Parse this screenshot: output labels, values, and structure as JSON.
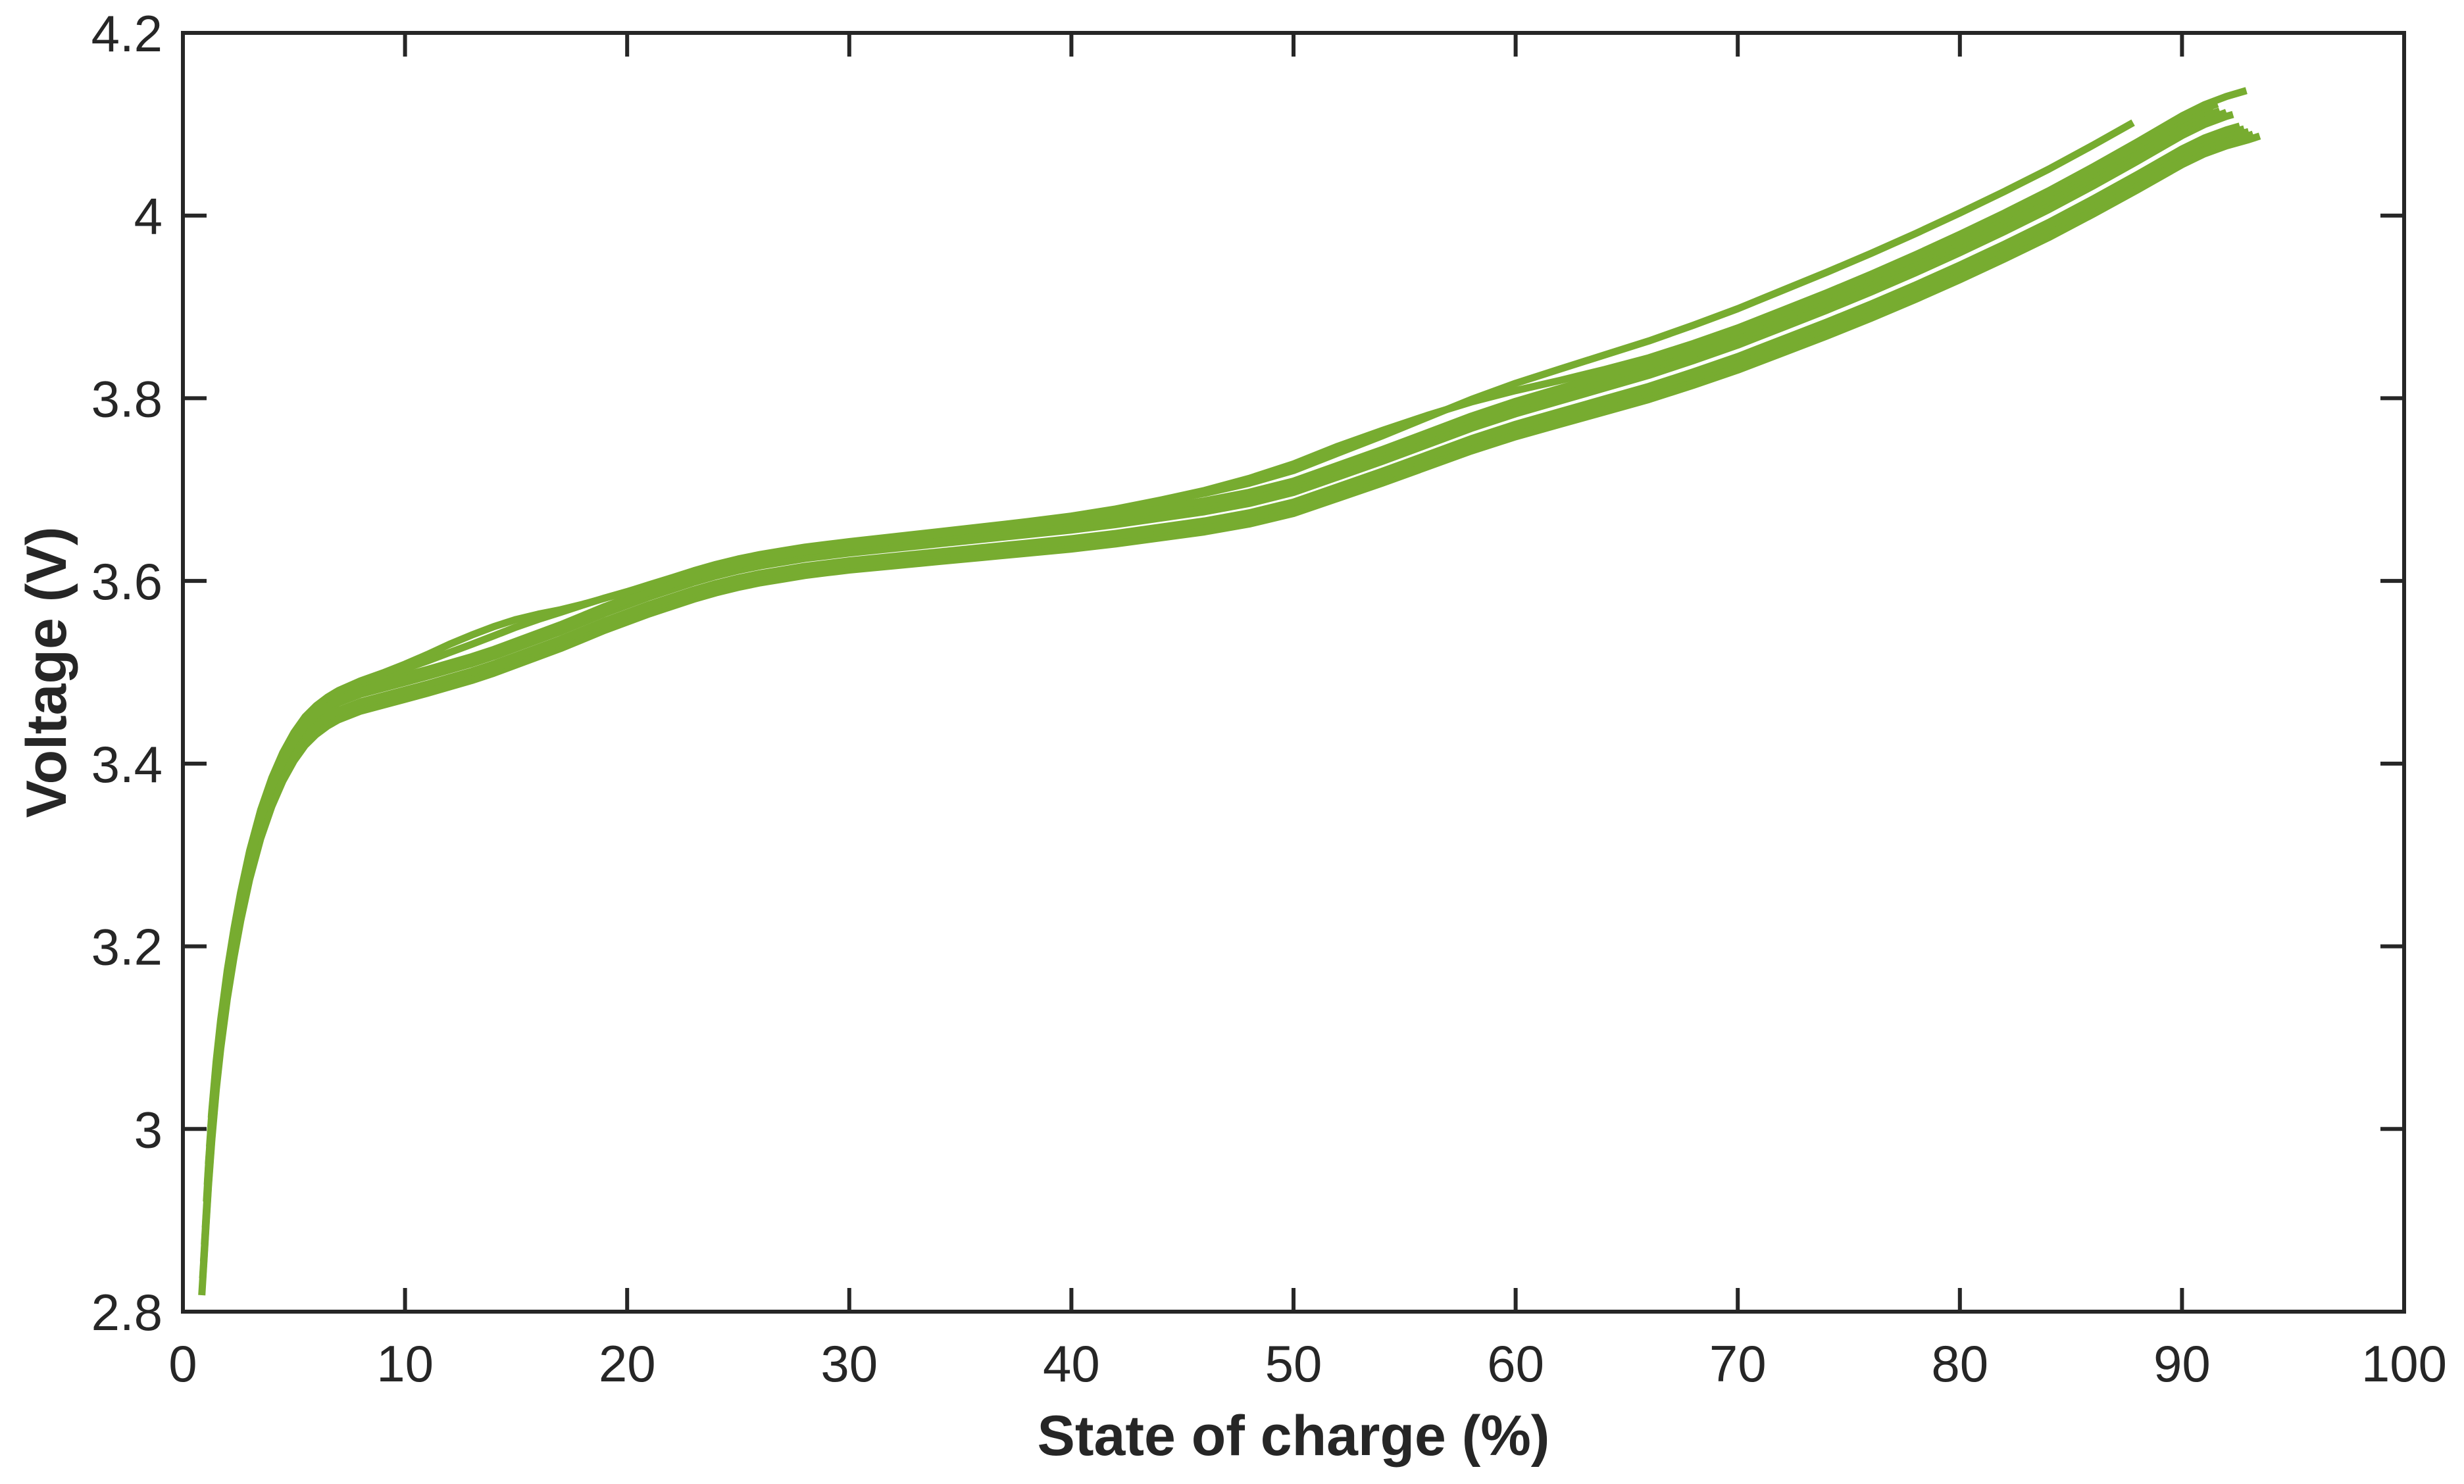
{
  "chart_data": {
    "type": "line",
    "title": "",
    "xlabel": "State of charge (%)",
    "ylabel": "Voltage (V)",
    "xlim": [
      0,
      100
    ],
    "ylim": [
      2.8,
      4.2
    ],
    "xticks": [
      0,
      10,
      20,
      30,
      40,
      50,
      60,
      70,
      80,
      90,
      100
    ],
    "xtick_labels": [
      "0",
      "10",
      "20",
      "30",
      "40",
      "50",
      "60",
      "70",
      "80",
      "90",
      "100"
    ],
    "yticks": [
      2.8,
      3.0,
      3.2,
      3.4,
      3.6,
      3.8,
      4.0,
      4.2
    ],
    "ytick_labels": [
      "2.8",
      "3",
      "3.2",
      "3.4",
      "3.6",
      "3.8",
      "4",
      "4.2"
    ],
    "grid": false,
    "legend": null,
    "series_color": "#77AC30",
    "axis_color": "#262626",
    "background_color": "#ffffff",
    "description": "Overlapping charge-cycle curves of a Li-ion cell: terminal voltage versus state of charge, all cycles plotted in green",
    "base_curve_points": [
      [
        0.85,
        2.835
      ],
      [
        0.95,
        2.875
      ],
      [
        1.05,
        2.915
      ],
      [
        1.15,
        2.955
      ],
      [
        1.3,
        3.005
      ],
      [
        1.5,
        3.06
      ],
      [
        1.7,
        3.105
      ],
      [
        2.0,
        3.16
      ],
      [
        2.3,
        3.205
      ],
      [
        2.6,
        3.245
      ],
      [
        3.0,
        3.29
      ],
      [
        3.5,
        3.335
      ],
      [
        4.0,
        3.37
      ],
      [
        4.5,
        3.398
      ],
      [
        5.0,
        3.42
      ],
      [
        5.5,
        3.437
      ],
      [
        6.0,
        3.449
      ],
      [
        6.5,
        3.458
      ],
      [
        7.0,
        3.465
      ],
      [
        8.0,
        3.4745
      ],
      [
        9.0,
        3.481
      ],
      [
        10,
        3.4875
      ],
      [
        11,
        3.494
      ],
      [
        12,
        3.501
      ],
      [
        13,
        3.508
      ],
      [
        14,
        3.516
      ],
      [
        15,
        3.525
      ],
      [
        16,
        3.534
      ],
      [
        17,
        3.543
      ],
      [
        18,
        3.553
      ],
      [
        19,
        3.563
      ],
      [
        20,
        3.572
      ],
      [
        21,
        3.581
      ],
      [
        22,
        3.589
      ],
      [
        23,
        3.597
      ],
      [
        24,
        3.604
      ],
      [
        25,
        3.61
      ],
      [
        26,
        3.615
      ],
      [
        27,
        3.619
      ],
      [
        28,
        3.623
      ],
      [
        29,
        3.626
      ],
      [
        30,
        3.629
      ],
      [
        32,
        3.634
      ],
      [
        34,
        3.639
      ],
      [
        36,
        3.644
      ],
      [
        38,
        3.649
      ],
      [
        40,
        3.654
      ],
      [
        42,
        3.66
      ],
      [
        44,
        3.667
      ],
      [
        46,
        3.674
      ],
      [
        48,
        3.683
      ],
      [
        50,
        3.695
      ],
      [
        52,
        3.712
      ],
      [
        54,
        3.729
      ],
      [
        56,
        3.747
      ],
      [
        58,
        3.765
      ],
      [
        60,
        3.781
      ],
      [
        62,
        3.795
      ],
      [
        64,
        3.809
      ],
      [
        66,
        3.823
      ],
      [
        68,
        3.839
      ],
      [
        70,
        3.856
      ],
      [
        72,
        3.875
      ],
      [
        74,
        3.894
      ],
      [
        76,
        3.914
      ],
      [
        78,
        3.935
      ],
      [
        80,
        3.957
      ],
      [
        82,
        3.98
      ],
      [
        84,
        4.004
      ],
      [
        86,
        4.03
      ],
      [
        88,
        4.057
      ],
      [
        90,
        4.085
      ],
      [
        91,
        4.097
      ],
      [
        92,
        4.106
      ],
      [
        93,
        4.113
      ],
      [
        93.5,
        4.117
      ]
    ],
    "cycle_traces": [
      {
        "start_soc": 0.85,
        "end_soc": 93.5,
        "dv": -0.017
      },
      {
        "start_soc": 0.89,
        "end_soc": 93.2,
        "dv": -0.0145
      },
      {
        "start_soc": 0.93,
        "end_soc": 93.0,
        "dv": -0.012
      },
      {
        "start_soc": 0.97,
        "end_soc": 92.8,
        "dv": -0.0095
      },
      {
        "start_soc": 1.01,
        "end_soc": 92.6,
        "dv": -0.007
      },
      {
        "start_soc": 1.06,
        "end_soc": 92.3,
        "dv": 0.0015
      },
      {
        "start_soc": 1.1,
        "end_soc": 92.0,
        "dv": 0.004
      },
      {
        "start_soc": 1.15,
        "end_soc": 91.7,
        "dv": 0.0065
      },
      {
        "start_soc": 1.2,
        "end_soc": 91.4,
        "dv": 0.009
      },
      {
        "start_soc": 1.24,
        "end_soc": 91.6,
        "dv": 0.0115,
        "bumps": [
          {
            "center": 15,
            "width": 5,
            "amp": 0.013
          }
        ]
      },
      {
        "start_soc": 1.28,
        "end_soc": 92.9,
        "dv": 0.014,
        "bumps": [
          {
            "center": 14,
            "width": 4,
            "amp": 0.02
          },
          {
            "center": 53,
            "width": 8,
            "amp": 0.018
          }
        ]
      },
      {
        "start_soc": 1.3,
        "end_soc": 87.8,
        "dv": 0.004,
        "ramp": {
          "center": 50,
          "width": 11,
          "amp": 0.042
        }
      }
    ],
    "style": {
      "line_width": 11,
      "axis_line_width": 6,
      "tick_length": 36,
      "spread_growth_per_soc": 0.012,
      "spread_growth_start_soc": 30
    }
  }
}
